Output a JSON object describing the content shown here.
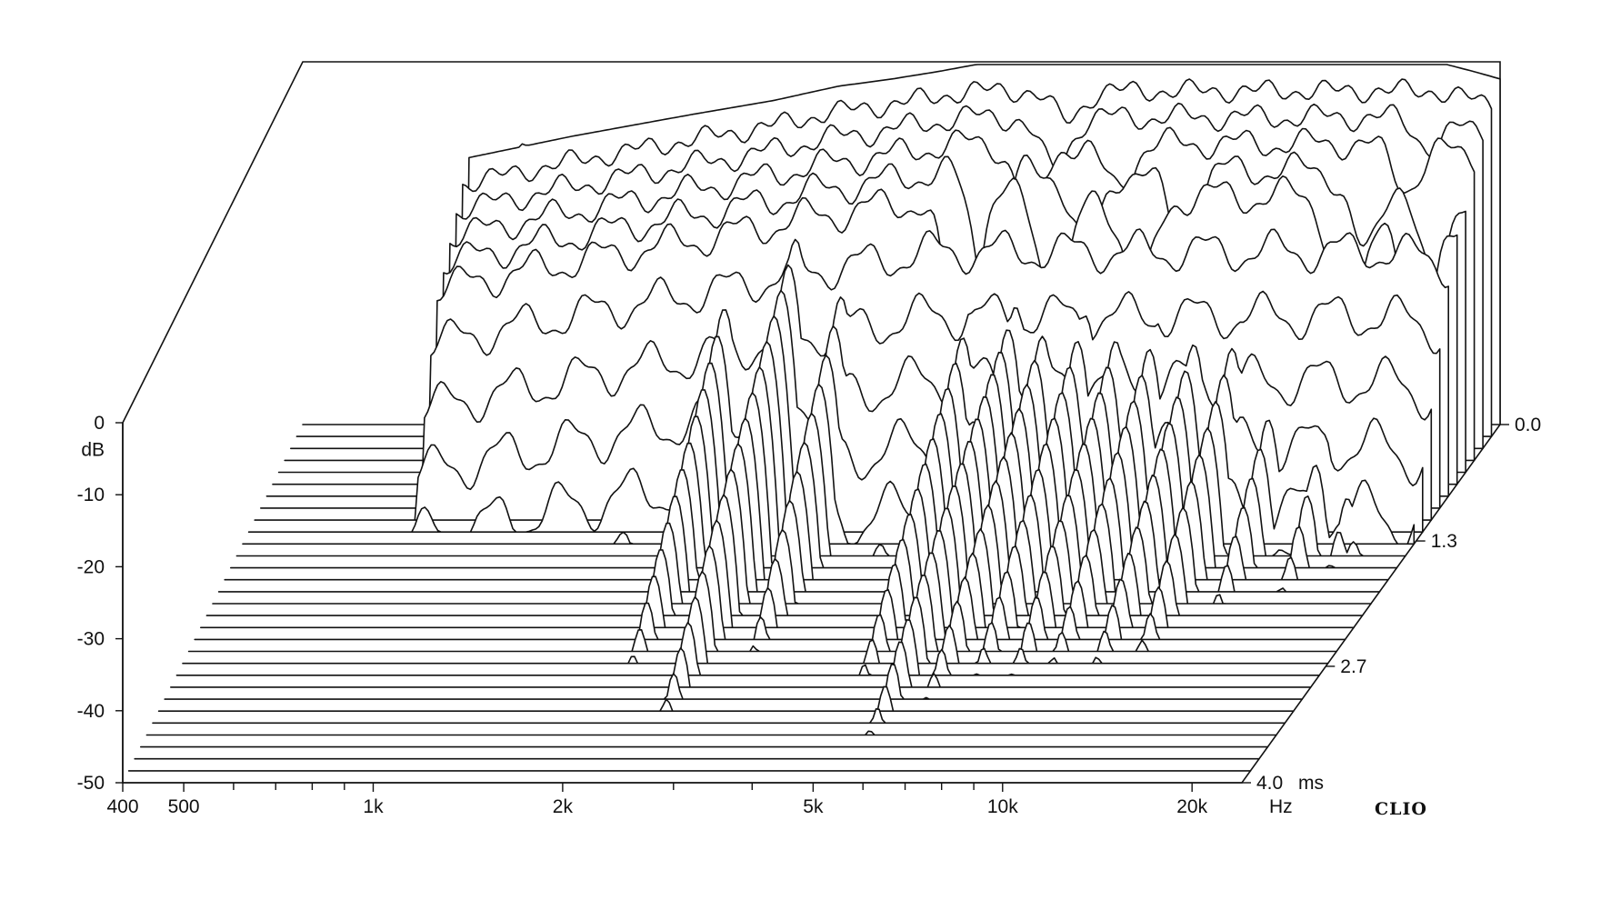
{
  "chart_data": {
    "type": "waterfall",
    "brand_label": "CLIO",
    "z_axis": {
      "label": "dB",
      "ticks": [
        {
          "value": 0,
          "label": "0"
        },
        {
          "value": -10,
          "label": "-10"
        },
        {
          "value": -20,
          "label": "-20"
        },
        {
          "value": -30,
          "label": "-30"
        },
        {
          "value": -40,
          "label": "-40"
        },
        {
          "value": -50,
          "label": "-50"
        }
      ],
      "range": [
        -50,
        0
      ]
    },
    "x_axis": {
      "scale": "log",
      "range": [
        400,
        24000
      ],
      "unit_label": "Hz",
      "ticks": [
        {
          "value": 400,
          "label": "400"
        },
        {
          "value": 500,
          "label": "500"
        },
        {
          "value": 1000,
          "label": "1k"
        },
        {
          "value": 2000,
          "label": "2k"
        },
        {
          "value": 5000,
          "label": "5k"
        },
        {
          "value": 10000,
          "label": "10k"
        },
        {
          "value": 20000,
          "label": "20k"
        }
      ],
      "minor_ticks": [
        600,
        700,
        800,
        900,
        3000,
        4000,
        6000,
        7000,
        8000,
        9000
      ]
    },
    "time_axis": {
      "unit_label": "ms",
      "range": [
        0,
        4.0
      ],
      "slices": 30,
      "ticks": [
        {
          "value": 0.0,
          "label": "0.0"
        },
        {
          "value": 1.3,
          "label": "1.3"
        },
        {
          "value": 2.7,
          "label": "2.7"
        },
        {
          "value": 4.0,
          "label": "4.0"
        }
      ]
    },
    "initial_response": {
      "freq": [
        700,
        1000,
        1500,
        2000,
        2500,
        3000,
        3500,
        4000,
        5000,
        7000,
        10000,
        15000,
        20000,
        22000,
        24000
      ],
      "db": [
        -13,
        -10,
        -7,
        -5,
        -3,
        -2,
        -1,
        0,
        0,
        0,
        0,
        0,
        0,
        -1,
        -2
      ]
    },
    "early_decay": [
      {
        "t": 0.13,
        "dips": [
          [
            5600,
            0.1
          ]
        ]
      },
      {
        "t": 0.27,
        "dips": [
          [
            5500,
            0.18
          ],
          [
            20000,
            0.1
          ]
        ]
      },
      {
        "t": 0.4,
        "dips": [
          [
            5200,
            0.22
          ],
          [
            7000,
            0.15
          ],
          [
            19000,
            0.15
          ]
        ]
      },
      {
        "t": 0.53,
        "dips": [
          [
            4600,
            0.4
          ],
          [
            6500,
            0.28
          ],
          [
            9000,
            0.25
          ],
          [
            17000,
            0.3
          ],
          [
            21500,
            0.4
          ]
        ]
      },
      {
        "t": 0.67,
        "dips": [
          [
            4300,
            0.6
          ],
          [
            6000,
            0.4
          ],
          [
            8000,
            0.35
          ],
          [
            16500,
            0.55
          ],
          [
            21000,
            0.6
          ]
        ]
      }
    ],
    "resonances": [
      {
        "freq": 850,
        "peak_db": -11,
        "decay_ms": 0.9
      },
      {
        "freq": 1500,
        "peak_db": -8,
        "decay_ms": 1.3
      },
      {
        "freq": 2000,
        "peak_db": -8,
        "decay_ms": 3.0
      },
      {
        "freq": 2500,
        "peak_db": -3,
        "decay_ms": 3.6
      },
      {
        "freq": 3000,
        "peak_db": -4,
        "decay_ms": 2.8
      },
      {
        "freq": 4700,
        "peak_db": -10,
        "decay_ms": 3.2
      },
      {
        "freq": 5500,
        "peak_db": -12,
        "decay_ms": 3.9
      },
      {
        "freq": 6200,
        "peak_db": -11,
        "decay_ms": 3.4
      },
      {
        "freq": 7000,
        "peak_db": -10,
        "decay_ms": 3.1
      },
      {
        "freq": 8000,
        "peak_db": -10,
        "decay_ms": 3.1
      },
      {
        "freq": 9000,
        "peak_db": -11,
        "decay_ms": 3.0
      },
      {
        "freq": 10500,
        "peak_db": -10,
        "decay_ms": 3.0
      },
      {
        "freq": 12000,
        "peak_db": -10,
        "decay_ms": 2.9
      },
      {
        "freq": 14000,
        "peak_db": -13,
        "decay_ms": 2.3
      },
      {
        "freq": 17000,
        "peak_db": -13,
        "decay_ms": 2.1
      },
      {
        "freq": 19000,
        "peak_db": -14,
        "decay_ms": 1.8
      },
      {
        "freq": 21000,
        "peak_db": -15,
        "decay_ms": 1.5
      }
    ]
  }
}
